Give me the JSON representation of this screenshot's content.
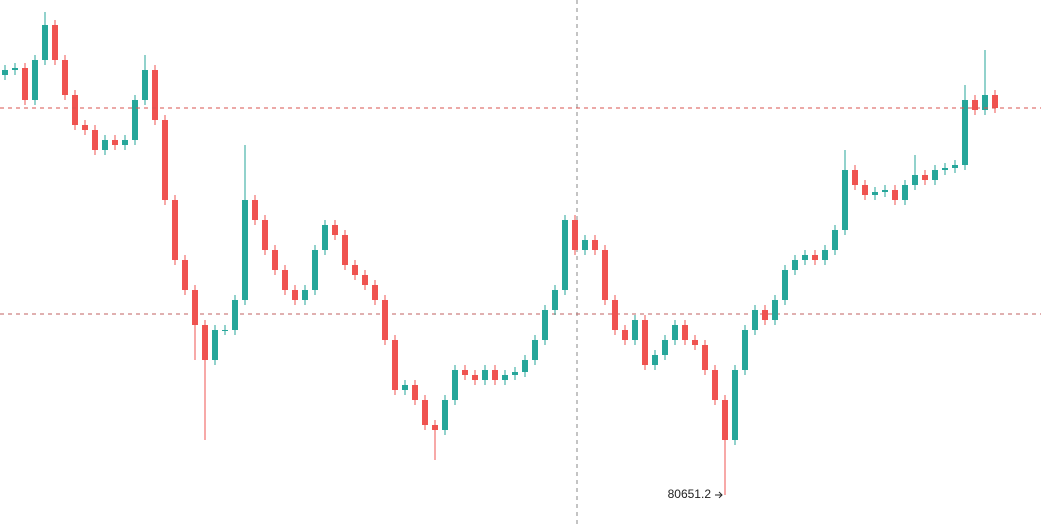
{
  "chart_data": {
    "type": "candlestick",
    "up_color": "#26a69a",
    "down_color": "#ef5350",
    "ylim": [
      80030,
      90550
    ],
    "crosshair_price": 84270,
    "open": [
      89050,
      89150,
      89190,
      88550,
      89350,
      90050,
      89350,
      88650,
      88050,
      87950,
      87550,
      87750,
      87650,
      87750,
      88550,
      89150,
      88150,
      86550,
      85350,
      84750,
      84050,
      83350,
      83950,
      83950,
      84550,
      86550,
      86150,
      85550,
      85150,
      84750,
      84550,
      84750,
      85550,
      86050,
      85850,
      85250,
      85050,
      84850,
      84550,
      83750,
      82750,
      82850,
      82550,
      82050,
      81950,
      82550,
      83150,
      83050,
      82950,
      83150,
      82950,
      83050,
      83110,
      83350,
      83750,
      84350,
      84750,
      86150,
      85550,
      85750,
      85550,
      84550,
      83950,
      83750,
      84150,
      83250,
      83450,
      83750,
      84050,
      83750,
      83650,
      83150,
      82550,
      81750,
      83150,
      83950,
      84350,
      84150,
      84550,
      85150,
      85350,
      85450,
      85350,
      85550,
      85950,
      87150,
      86850,
      86650,
      86710,
      86750,
      86550,
      86850,
      87050,
      86950,
      87150,
      87190,
      87250,
      88550,
      88350,
      88650
    ],
    "high": [
      89250,
      89290,
      89290,
      89450,
      90310,
      90150,
      89450,
      88750,
      88150,
      88050,
      87850,
      87850,
      87850,
      88650,
      89450,
      89250,
      88250,
      86650,
      85450,
      84850,
      84150,
      84050,
      84050,
      84650,
      87650,
      86650,
      86250,
      85650,
      85250,
      84850,
      84850,
      85650,
      86150,
      86150,
      85950,
      85350,
      85150,
      84950,
      84650,
      83850,
      82950,
      82950,
      82650,
      82150,
      82650,
      83250,
      83250,
      83150,
      83250,
      83250,
      83150,
      83210,
      83450,
      83850,
      84450,
      84850,
      86250,
      86250,
      85850,
      85850,
      85650,
      84650,
      84050,
      84250,
      84250,
      83550,
      83850,
      84150,
      84150,
      83850,
      83750,
      83250,
      82650,
      83250,
      84050,
      84450,
      84450,
      84650,
      85250,
      85450,
      85550,
      85550,
      85650,
      86050,
      87550,
      87250,
      86950,
      86810,
      86850,
      86850,
      86950,
      87450,
      87150,
      87250,
      87290,
      87350,
      88850,
      88650,
      89550,
      88750
    ],
    "low": [
      88950,
      89050,
      88450,
      88450,
      89250,
      89250,
      88550,
      87950,
      87850,
      87450,
      87450,
      87550,
      87550,
      87650,
      88450,
      88050,
      86450,
      85250,
      84650,
      83350,
      81750,
      83250,
      83850,
      83850,
      84450,
      86050,
      85450,
      85050,
      84650,
      84450,
      84450,
      84650,
      85450,
      85750,
      85150,
      84950,
      84750,
      84450,
      83650,
      82650,
      82650,
      82450,
      81950,
      81350,
      81850,
      82450,
      82950,
      82850,
      82850,
      82850,
      82850,
      82950,
      83010,
      83250,
      83650,
      84250,
      84650,
      85450,
      85450,
      85450,
      84450,
      83850,
      83650,
      83650,
      83150,
      83150,
      83350,
      83650,
      83650,
      83550,
      83050,
      82450,
      80651.2,
      81650,
      83050,
      83850,
      84050,
      84050,
      84450,
      85050,
      85250,
      85250,
      85250,
      85450,
      85850,
      86750,
      86550,
      86550,
      86610,
      86450,
      86450,
      86750,
      86850,
      86850,
      87050,
      87090,
      87150,
      88250,
      88250,
      88290
    ],
    "close": [
      89150,
      89190,
      88550,
      89350,
      90050,
      89350,
      88650,
      88050,
      87950,
      87550,
      87750,
      87650,
      87750,
      88550,
      89150,
      88150,
      86550,
      85350,
      84750,
      84050,
      83350,
      83950,
      83950,
      84550,
      86550,
      86150,
      85550,
      85150,
      84750,
      84550,
      84750,
      85550,
      86050,
      85850,
      85250,
      85050,
      84850,
      84550,
      83750,
      82750,
      82850,
      82550,
      82050,
      81950,
      82550,
      83150,
      83050,
      82950,
      83150,
      82950,
      83050,
      83110,
      83350,
      83750,
      84350,
      84750,
      86150,
      85550,
      85750,
      85550,
      84550,
      83950,
      83750,
      84150,
      83250,
      83450,
      83750,
      84050,
      83750,
      83650,
      83150,
      82550,
      81750,
      83150,
      83950,
      84350,
      84150,
      84550,
      85150,
      85350,
      85450,
      85350,
      85550,
      85950,
      87150,
      86850,
      86650,
      86710,
      86750,
      86550,
      86850,
      87050,
      86950,
      87150,
      87190,
      87250,
      88550,
      88350,
      88650,
      88390
    ]
  }
}
